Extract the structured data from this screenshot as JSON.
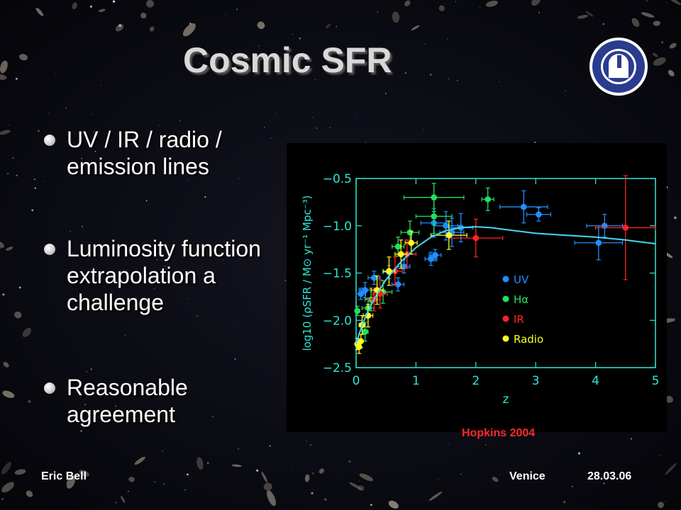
{
  "slide": {
    "title": "Cosmic SFR",
    "bullets": [
      "UV / IR / radio / emission lines",
      "Luminosity function extrapolation a challenge",
      "Reasonable agreement"
    ],
    "credit": "Hopkins 2004",
    "footer": {
      "author": "Eric Bell",
      "venue": "Venice",
      "date": "28.03.06"
    }
  },
  "colors": {
    "frame": "#2ee6d8",
    "fit": "#46d8ee",
    "UV": "#1e90ff",
    "Halpha": "#22e060",
    "IR": "#ff2222",
    "Radio": "#ffff22"
  },
  "chart_data": {
    "type": "scatter",
    "xlabel": "z",
    "ylabel": "log10 (ρSFR / M⊙ yr⁻¹ Mpc⁻³)",
    "xlim": [
      0,
      5
    ],
    "ylim": [
      -2.5,
      -0.5
    ],
    "xticks": [
      0,
      1,
      2,
      3,
      4,
      5
    ],
    "yticks": [
      -0.5,
      -1.0,
      -1.5,
      -2.0,
      -2.5
    ],
    "ytick_labels": [
      "−0.5",
      "−1.0",
      "−1.5",
      "−2.0",
      "−2.5"
    ],
    "legend_position": "right-middle",
    "series": [
      {
        "name": "UV",
        "points": [
          {
            "x": 0.08,
            "y": -1.72,
            "xe": 0.08,
            "ye": 0.06
          },
          {
            "x": 0.15,
            "y": -1.68,
            "xe": 0.1,
            "ye": 0.08
          },
          {
            "x": 0.3,
            "y": -1.55,
            "xe": 0.1,
            "ye": 0.07
          },
          {
            "x": 0.55,
            "y": -1.49,
            "xe": 0.1,
            "ye": 0.07
          },
          {
            "x": 0.7,
            "y": -1.62,
            "xe": 0.1,
            "ye": 0.07
          },
          {
            "x": 0.8,
            "y": -1.43,
            "xe": 0.1,
            "ye": 0.07
          },
          {
            "x": 1.25,
            "y": -1.35,
            "xe": 0.1,
            "ye": 0.07
          },
          {
            "x": 1.32,
            "y": -1.31,
            "xe": 0.1,
            "ye": 0.06
          },
          {
            "x": 1.3,
            "y": -0.97,
            "xe": 0.22,
            "ye": 0.15
          },
          {
            "x": 1.5,
            "y": -1.0,
            "xe": 0.2,
            "ye": 0.15
          },
          {
            "x": 1.6,
            "y": -1.07,
            "xe": 0.2,
            "ye": 0.15
          },
          {
            "x": 1.75,
            "y": -1.02,
            "xe": 0.2,
            "ye": 0.15
          },
          {
            "x": 2.8,
            "y": -0.8,
            "xe": 0.4,
            "ye": 0.17
          },
          {
            "x": 3.05,
            "y": -0.88,
            "xe": 0.2,
            "ye": 0.07
          },
          {
            "x": 4.05,
            "y": -1.18,
            "xe": 0.4,
            "ye": 0.18
          },
          {
            "x": 4.15,
            "y": -1.0,
            "xe": 0.3,
            "ye": 0.12
          }
        ]
      },
      {
        "name": "Hα",
        "points": [
          {
            "x": 0.02,
            "y": -1.9,
            "xe": 0.02,
            "ye": 0.05
          },
          {
            "x": 0.15,
            "y": -2.12,
            "xe": 0.05,
            "ye": 0.1
          },
          {
            "x": 0.2,
            "y": -1.87,
            "xe": 0.1,
            "ye": 0.1
          },
          {
            "x": 0.25,
            "y": -1.78,
            "xe": 0.1,
            "ye": 0.12
          },
          {
            "x": 0.45,
            "y": -1.7,
            "xe": 0.15,
            "ye": 0.12
          },
          {
            "x": 0.7,
            "y": -1.22,
            "xe": 0.1,
            "ye": 0.1
          },
          {
            "x": 0.9,
            "y": -1.07,
            "xe": 0.15,
            "ye": 0.12
          },
          {
            "x": 1.3,
            "y": -0.9,
            "xe": 0.3,
            "ye": 0.18
          },
          {
            "x": 1.3,
            "y": -0.7,
            "xe": 0.5,
            "ye": 0.15
          },
          {
            "x": 2.2,
            "y": -0.72,
            "xe": 0.1,
            "ye": 0.12
          }
        ]
      },
      {
        "name": "IR",
        "points": [
          {
            "x": 0.3,
            "y": -1.78,
            "xe": 0.1,
            "ye": 0.12
          },
          {
            "x": 0.4,
            "y": -1.72,
            "xe": 0.12,
            "ye": 0.15
          },
          {
            "x": 0.65,
            "y": -1.48,
            "xe": 0.12,
            "ye": 0.15
          },
          {
            "x": 0.85,
            "y": -1.3,
            "xe": 0.15,
            "ye": 0.15
          },
          {
            "x": 2.0,
            "y": -1.13,
            "xe": 0.45,
            "ye": 0.2
          },
          {
            "x": 4.5,
            "y": -1.02,
            "xe": 0.5,
            "ye": 0.55
          }
        ]
      },
      {
        "name": "Radio",
        "points": [
          {
            "x": 0.02,
            "y": -2.25,
            "xe": 0.02,
            "ye": 0.06
          },
          {
            "x": 0.05,
            "y": -2.28,
            "xe": 0.03,
            "ye": 0.07
          },
          {
            "x": 0.08,
            "y": -2.22,
            "xe": 0.03,
            "ye": 0.07
          },
          {
            "x": 0.1,
            "y": -2.05,
            "xe": 0.05,
            "ye": 0.1
          },
          {
            "x": 0.2,
            "y": -1.95,
            "xe": 0.08,
            "ye": 0.12
          },
          {
            "x": 0.35,
            "y": -1.68,
            "xe": 0.1,
            "ye": 0.15
          },
          {
            "x": 0.55,
            "y": -1.48,
            "xe": 0.1,
            "ye": 0.15
          },
          {
            "x": 0.75,
            "y": -1.3,
            "xe": 0.1,
            "ye": 0.15
          },
          {
            "x": 0.92,
            "y": -1.18,
            "xe": 0.1,
            "ye": 0.12
          },
          {
            "x": 1.55,
            "y": -1.1,
            "xe": 0.3,
            "ye": 0.15
          }
        ]
      }
    ],
    "fit": {
      "x": [
        0,
        0.1,
        0.2,
        0.35,
        0.5,
        0.75,
        1.0,
        1.25,
        1.5,
        1.75,
        2.0,
        2.25,
        2.5,
        3.0,
        3.5,
        4.0,
        4.5,
        5.0
      ],
      "y": [
        -2.25,
        -2.05,
        -1.9,
        -1.72,
        -1.57,
        -1.38,
        -1.23,
        -1.12,
        -1.05,
        -1.02,
        -1.01,
        -1.02,
        -1.04,
        -1.08,
        -1.1,
        -1.12,
        -1.15,
        -1.19
      ]
    },
    "legend": [
      "UV",
      "Hα",
      "IR",
      "Radio"
    ]
  }
}
